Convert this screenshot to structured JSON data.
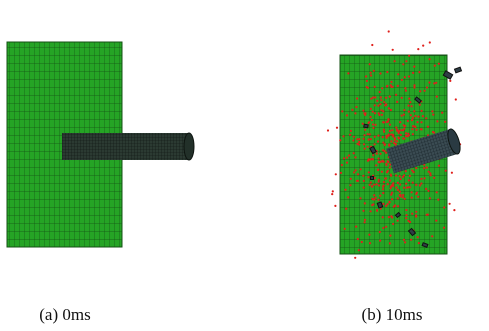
{
  "panels": [
    {
      "caption": "(a) 0ms"
    },
    {
      "caption": "(b) 10ms"
    }
  ]
}
